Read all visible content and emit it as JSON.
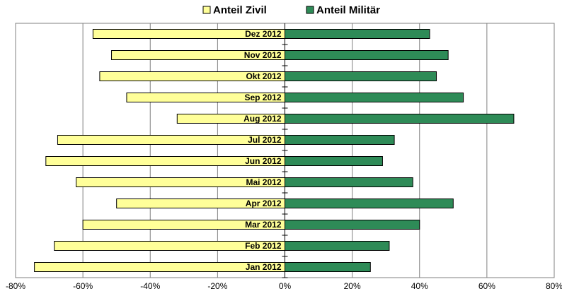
{
  "chart_data": {
    "type": "bar",
    "orientation": "horizontal",
    "stacked_diverging": true,
    "categories": [
      "Jan 2012",
      "Feb 2012",
      "Mar 2012",
      "Apr 2012",
      "Mai 2012",
      "Jun 2012",
      "Jul 2012",
      "Aug 2012",
      "Sep 2012",
      "Okt 2012",
      "Nov 2012",
      "Dez 2012"
    ],
    "series": [
      {
        "name": "Anteil Zivil",
        "color": "#ffff99",
        "values": [
          -74.4,
          -68.5,
          -60,
          -50,
          -62,
          -71,
          -67.5,
          -32,
          -47,
          -55,
          -51.5,
          -57
        ]
      },
      {
        "name": "Anteil Militär",
        "color": "#2e8b57",
        "values": [
          25.4,
          31,
          40,
          50,
          38,
          29,
          32.5,
          68,
          53,
          45,
          48.5,
          43
        ]
      }
    ],
    "xlim": [
      -80,
      80
    ],
    "xticks": [
      {
        "value": -80,
        "label": "-80%"
      },
      {
        "value": -60,
        "label": "-60%"
      },
      {
        "value": -40,
        "label": "-40%"
      },
      {
        "value": -20,
        "label": "-20%"
      },
      {
        "value": 0,
        "label": "0%"
      },
      {
        "value": 20,
        "label": "20%"
      },
      {
        "value": 40,
        "label": "40%"
      },
      {
        "value": 60,
        "label": "60%"
      },
      {
        "value": 80,
        "label": "80%"
      }
    ],
    "grid": true,
    "legend": "top"
  }
}
